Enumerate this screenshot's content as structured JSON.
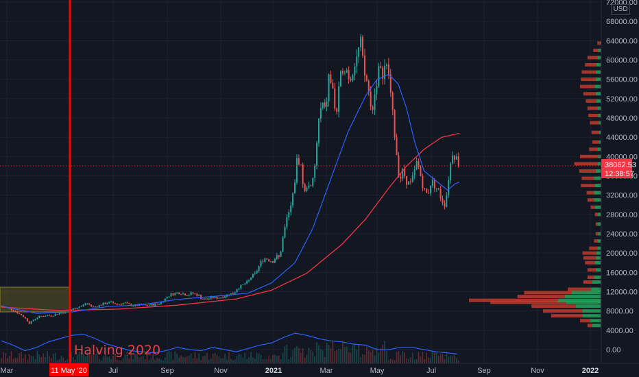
{
  "chart_data": {
    "type": "candlestick",
    "currency": "USD",
    "annotation": "Halving 2020",
    "marker_date_label": "11 May '20",
    "last_price": "38062.53",
    "countdown": "12:38:57",
    "x_tick_labels": [
      "Mar",
      "Jul",
      "Sep",
      "Nov",
      "2021",
      "Mar",
      "May",
      "Jul",
      "Sep",
      "Nov",
      "2022"
    ],
    "y_tick_labels": [
      "0.00",
      "4000.00",
      "8000.00",
      "12000.00",
      "16000.00",
      "20000.00",
      "24000.00",
      "28000.00",
      "32000.00",
      "36000.00",
      "40000.00",
      "44000.00",
      "48000.00",
      "52000.00",
      "56000.00",
      "60000.00",
      "64000.00",
      "68000.00",
      "72000.00"
    ],
    "ylim": [
      0,
      72000
    ],
    "price_series": [
      [
        0,
        9000
      ],
      [
        3,
        8800
      ],
      [
        6,
        8500
      ],
      [
        9,
        8300
      ],
      [
        12,
        7900
      ],
      [
        15,
        7400
      ],
      [
        18,
        7000
      ],
      [
        21,
        6300
      ],
      [
        24,
        5400
      ],
      [
        27,
        6100
      ],
      [
        30,
        6600
      ],
      [
        33,
        6900
      ],
      [
        36,
        7000
      ],
      [
        39,
        7100
      ],
      [
        42,
        7000
      ],
      [
        45,
        7200
      ],
      [
        48,
        7500
      ],
      [
        51,
        7600
      ],
      [
        54,
        7700
      ],
      [
        57,
        7900
      ],
      [
        60,
        8300
      ],
      [
        63,
        8600
      ],
      [
        66,
        8900
      ],
      [
        69,
        9100
      ],
      [
        72,
        9600
      ],
      [
        75,
        9300
      ],
      [
        78,
        8800
      ],
      [
        81,
        9000
      ],
      [
        84,
        9200
      ],
      [
        87,
        9500
      ],
      [
        90,
        9700
      ],
      [
        93,
        9800
      ],
      [
        96,
        9600
      ],
      [
        99,
        9400
      ],
      [
        102,
        9500
      ],
      [
        105,
        9700
      ],
      [
        108,
        9300
      ],
      [
        111,
        9200
      ],
      [
        114,
        9100
      ],
      [
        117,
        9200
      ],
      [
        120,
        9300
      ],
      [
        123,
        9100
      ],
      [
        126,
        9200
      ],
      [
        129,
        9300
      ],
      [
        132,
        9400
      ],
      [
        135,
        9600
      ],
      [
        138,
        10200
      ],
      [
        141,
        10900
      ],
      [
        144,
        11400
      ],
      [
        147,
        11600
      ],
      [
        150,
        11800
      ],
      [
        153,
        11700
      ],
      [
        156,
        11500
      ],
      [
        159,
        11300
      ],
      [
        162,
        11700
      ],
      [
        165,
        11500
      ],
      [
        168,
        11200
      ],
      [
        171,
        10500
      ],
      [
        174,
        10400
      ],
      [
        177,
        10600
      ],
      [
        180,
        10800
      ],
      [
        183,
        10700
      ],
      [
        186,
        10800
      ],
      [
        189,
        11000
      ],
      [
        192,
        11300
      ],
      [
        195,
        11500
      ],
      [
        198,
        11700
      ],
      [
        201,
        12800
      ],
      [
        204,
        13100
      ],
      [
        207,
        13600
      ],
      [
        210,
        14000
      ],
      [
        213,
        15200
      ],
      [
        216,
        15600
      ],
      [
        219,
        17100
      ],
      [
        222,
        18500
      ],
      [
        225,
        19000
      ],
      [
        228,
        18600
      ],
      [
        231,
        18300
      ],
      [
        234,
        19300
      ],
      [
        237,
        19000
      ],
      [
        240,
        23500
      ],
      [
        243,
        27000
      ],
      [
        246,
        29000
      ],
      [
        249,
        33000
      ],
      [
        252,
        40000
      ],
      [
        255,
        38000
      ],
      [
        258,
        32000
      ],
      [
        261,
        35000
      ],
      [
        264,
        33000
      ],
      [
        267,
        38000
      ],
      [
        270,
        47000
      ],
      [
        273,
        51000
      ],
      [
        276,
        49000
      ],
      [
        279,
        57000
      ],
      [
        282,
        54000
      ],
      [
        285,
        48000
      ],
      [
        288,
        55000
      ],
      [
        291,
        59000
      ],
      [
        294,
        58000
      ],
      [
        297,
        56000
      ],
      [
        300,
        59000
      ],
      [
        303,
        61000
      ],
      [
        306,
        63500
      ],
      [
        309,
        57000
      ],
      [
        312,
        55000
      ],
      [
        315,
        49000
      ],
      [
        318,
        53000
      ],
      [
        321,
        58000
      ],
      [
        324,
        57000
      ],
      [
        327,
        59000
      ],
      [
        330,
        57000
      ],
      [
        333,
        49000
      ],
      [
        336,
        42000
      ],
      [
        339,
        35000
      ],
      [
        342,
        37000
      ],
      [
        345,
        35000
      ],
      [
        348,
        34000
      ],
      [
        351,
        36000
      ],
      [
        354,
        39000
      ],
      [
        357,
        36000
      ],
      [
        360,
        33000
      ],
      [
        363,
        32000
      ],
      [
        366,
        35000
      ],
      [
        369,
        34000
      ],
      [
        372,
        33000
      ],
      [
        375,
        31000
      ],
      [
        378,
        30000
      ],
      [
        381,
        36000
      ],
      [
        384,
        41000
      ],
      [
        387,
        40000
      ],
      [
        390,
        38062
      ]
    ],
    "sma50": [
      [
        0,
        9000
      ],
      [
        30,
        7500
      ],
      [
        60,
        7800
      ],
      [
        90,
        8900
      ],
      [
        120,
        9300
      ],
      [
        150,
        10400
      ],
      [
        180,
        11000
      ],
      [
        210,
        11700
      ],
      [
        230,
        13800
      ],
      [
        250,
        18000
      ],
      [
        265,
        25000
      ],
      [
        280,
        35000
      ],
      [
        295,
        45000
      ],
      [
        310,
        52500
      ],
      [
        320,
        56000
      ],
      [
        330,
        57000
      ],
      [
        338,
        55000
      ],
      [
        345,
        50000
      ],
      [
        352,
        43000
      ],
      [
        360,
        37000
      ],
      [
        370,
        35000
      ],
      [
        380,
        33000
      ],
      [
        386,
        34300
      ],
      [
        390,
        34700
      ]
    ],
    "sma200": [
      [
        0,
        8800
      ],
      [
        50,
        8100
      ],
      [
        100,
        8400
      ],
      [
        150,
        9200
      ],
      [
        200,
        10500
      ],
      [
        230,
        12300
      ],
      [
        260,
        15800
      ],
      [
        290,
        21800
      ],
      [
        310,
        27000
      ],
      [
        330,
        33500
      ],
      [
        345,
        38000
      ],
      [
        360,
        41500
      ],
      [
        375,
        44000
      ],
      [
        390,
        44800
      ]
    ],
    "volume_line": [
      [
        0,
        1800
      ],
      [
        10,
        1400
      ],
      [
        20,
        900
      ],
      [
        30,
        1200
      ],
      [
        40,
        1700
      ],
      [
        50,
        2000
      ],
      [
        60,
        2300
      ],
      [
        70,
        2400
      ],
      [
        80,
        2000
      ],
      [
        90,
        1500
      ],
      [
        100,
        1200
      ],
      [
        110,
        900
      ],
      [
        120,
        800
      ],
      [
        130,
        700
      ],
      [
        140,
        900
      ],
      [
        150,
        1200
      ],
      [
        160,
        1000
      ],
      [
        170,
        900
      ],
      [
        180,
        1200
      ],
      [
        190,
        1000
      ],
      [
        200,
        800
      ],
      [
        210,
        1100
      ],
      [
        220,
        1400
      ],
      [
        230,
        1600
      ],
      [
        240,
        2100
      ],
      [
        250,
        2500
      ],
      [
        260,
        2300
      ],
      [
        270,
        2000
      ],
      [
        280,
        1800
      ],
      [
        290,
        1700
      ],
      [
        300,
        1500
      ],
      [
        310,
        1400
      ],
      [
        320,
        1000
      ],
      [
        330,
        1000
      ],
      [
        340,
        1200
      ],
      [
        350,
        1200
      ],
      [
        360,
        1000
      ],
      [
        370,
        800
      ],
      [
        380,
        700
      ],
      [
        388,
        600
      ]
    ],
    "volume_profile": [
      [
        5000,
        10,
        6
      ],
      [
        6000,
        13,
        12
      ],
      [
        7000,
        22,
        38
      ],
      [
        8000,
        22,
        48
      ],
      [
        9000,
        30,
        54
      ],
      [
        9800,
        42,
        92
      ],
      [
        10200,
        52,
        108
      ],
      [
        11000,
        44,
        57
      ],
      [
        11800,
        35,
        58
      ],
      [
        12500,
        12,
        28
      ],
      [
        14000,
        10,
        11
      ],
      [
        15000,
        8,
        8
      ],
      [
        16500,
        6,
        10
      ],
      [
        18000,
        7,
        12
      ],
      [
        19000,
        6,
        15
      ],
      [
        20000,
        5,
        17
      ],
      [
        21000,
        4,
        10
      ],
      [
        22500,
        4,
        4
      ],
      [
        24000,
        3,
        3
      ],
      [
        26000,
        4,
        2
      ],
      [
        28000,
        4,
        3
      ],
      [
        29500,
        7,
        5
      ],
      [
        31000,
        8,
        8
      ],
      [
        32500,
        8,
        9
      ],
      [
        34000,
        7,
        17
      ],
      [
        35500,
        8,
        15
      ],
      [
        37000,
        6,
        20
      ],
      [
        38500,
        4,
        28
      ],
      [
        40000,
        3,
        22
      ],
      [
        41500,
        4,
        10
      ],
      [
        43000,
        2,
        8
      ],
      [
        45000,
        2,
        9
      ],
      [
        47000,
        2,
        11
      ],
      [
        48500,
        3,
        12
      ],
      [
        50000,
        4,
        12
      ],
      [
        51500,
        5,
        13
      ],
      [
        53000,
        6,
        15
      ],
      [
        54500,
        7,
        18
      ],
      [
        56000,
        6,
        18
      ],
      [
        57500,
        6,
        17
      ],
      [
        59000,
        5,
        14
      ],
      [
        60500,
        4,
        12
      ],
      [
        62000,
        3,
        6
      ],
      [
        63500,
        1,
        3
      ]
    ]
  }
}
